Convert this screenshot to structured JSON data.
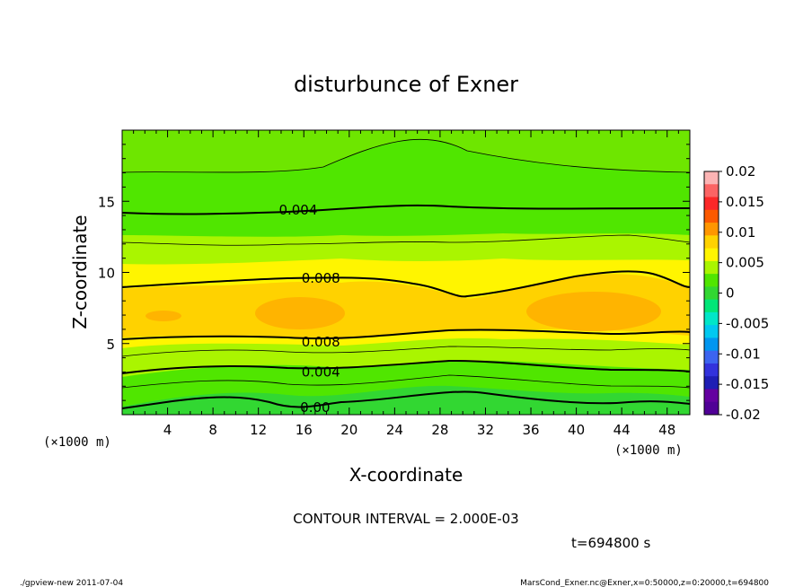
{
  "chart_data": {
    "type": "heatmap",
    "title": "disturbunce of Exner",
    "xlabel": "X-coordinate",
    "ylabel": "Z-coordinate",
    "x_unit": "(×1000 m)",
    "y_unit": "(×1000 m)",
    "xlim": [
      0,
      50
    ],
    "ylim": [
      0,
      20
    ],
    "x_ticks": [
      4,
      8,
      12,
      16,
      20,
      24,
      28,
      32,
      36,
      40,
      44,
      48
    ],
    "y_ticks": [
      5,
      10,
      15
    ],
    "colorbar": {
      "ticks": [
        "0.02",
        "0.015",
        "0.01",
        "0.005",
        "0",
        "-0.005",
        "-0.01",
        "-0.015",
        "-0.02"
      ],
      "colors": [
        "#fcb4b4",
        "#fc6464",
        "#fc2828",
        "#fc5a00",
        "#ff9600",
        "#ffd200",
        "#fff500",
        "#aaf500",
        "#50e600",
        "#32d732",
        "#00e678",
        "#00e6c8",
        "#00c8f0",
        "#0096f0",
        "#3c64f0",
        "#3232dc",
        "#1e1eb4",
        "#6400a0",
        "#500096"
      ],
      "min": -0.02,
      "max": 0.02
    },
    "contour_interval_text": "CONTOUR INTERVAL = 2.000E-03",
    "contour_labels": [
      {
        "label": "0.004",
        "x": 15.5,
        "z": 14.4
      },
      {
        "label": "0.008",
        "x": 17.5,
        "z": 9.6
      },
      {
        "label": "0.008",
        "x": 17.5,
        "z": 5.1
      },
      {
        "label": "0.004",
        "x": 17.5,
        "z": 3.0
      },
      {
        "label": "0.00",
        "x": 17.0,
        "z": 0.5
      }
    ],
    "time_text": "t=694800 s"
  },
  "footer": {
    "left": "./gpview-new   2011-07-04",
    "right": "MarsCond_Exner.nc@Exner,x=0:50000,z=0:20000,t=694800"
  }
}
